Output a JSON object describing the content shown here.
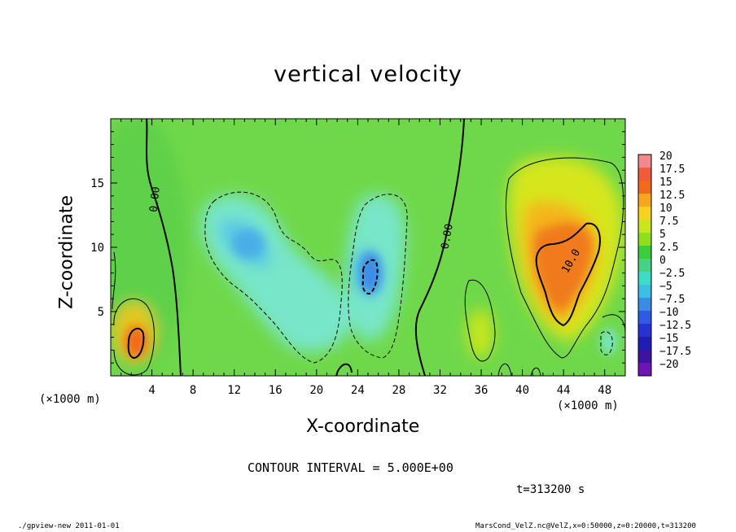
{
  "chart_data": {
    "type": "heatmap",
    "title": "vertical velocity",
    "xlabel": "X-coordinate",
    "ylabel": "Z-coordinate",
    "x_unit_left": "(×1000 m)",
    "x_unit_right": "(×1000 m)",
    "xlim": [
      0,
      50
    ],
    "ylim": [
      0,
      20
    ],
    "x_ticks": [
      4,
      8,
      12,
      16,
      20,
      24,
      28,
      32,
      36,
      40,
      44,
      48
    ],
    "y_ticks": [
      5,
      10,
      15
    ],
    "colorbar": {
      "levels": [
        20,
        17.5,
        15,
        12.5,
        10,
        7.5,
        5,
        2.5,
        0,
        -2.5,
        -5,
        -7.5,
        -10,
        -12.5,
        -15,
        -17.5,
        -20
      ],
      "labels": [
        "20",
        "17.5",
        "15",
        "12.5",
        "10",
        "7.5",
        "5",
        "2.5",
        "0",
        "−2.5",
        "−5",
        "−7.5",
        "−10",
        "−12.5",
        "−15",
        "−17.5",
        "−20"
      ],
      "colors": [
        "#f08a8a",
        "#f25a3c",
        "#f06a1e",
        "#f5a81e",
        "#f8d21e",
        "#c8e61e",
        "#8ee01e",
        "#3ccc3c",
        "#46d282",
        "#3cdcc8",
        "#3cbee6",
        "#3c8ce6",
        "#2e5ae6",
        "#2832d2",
        "#1e1eb4",
        "#3c14a0",
        "#6e14b4"
      ]
    },
    "contour_labels": [
      {
        "text": "0.00",
        "x": 4.6,
        "z": 13.7
      },
      {
        "text": "0.00",
        "x": 33.0,
        "z": 10.8
      },
      {
        "text": "10.0",
        "x": 45.0,
        "z": 8.8
      }
    ],
    "regions": [
      {
        "sign": "positive",
        "center_x": 2.8,
        "center_z": 2.7,
        "peak": 12.5
      },
      {
        "sign": "negative",
        "center_x": 14.5,
        "center_z": 10.0,
        "peak": -7.5
      },
      {
        "sign": "negative",
        "center_x": 25.0,
        "center_z": 7.5,
        "peak": -10
      },
      {
        "sign": "positive",
        "center_x": 44.0,
        "center_z": 9.0,
        "peak": 12.5
      },
      {
        "sign": "positive",
        "center_x": 35.5,
        "center_z": 3.0,
        "peak": 7.5
      }
    ],
    "contour_interval_text": "CONTOUR INTERVAL = 5.000E+00",
    "time_text": "t=313200 s",
    "grid": false,
    "legend": "colorbar-right"
  },
  "footer": {
    "left": "./gpview-new   2011-01-01",
    "right": "MarsCond_VelZ.nc@VelZ,x=0:50000,z=0:20000,t=313200"
  }
}
